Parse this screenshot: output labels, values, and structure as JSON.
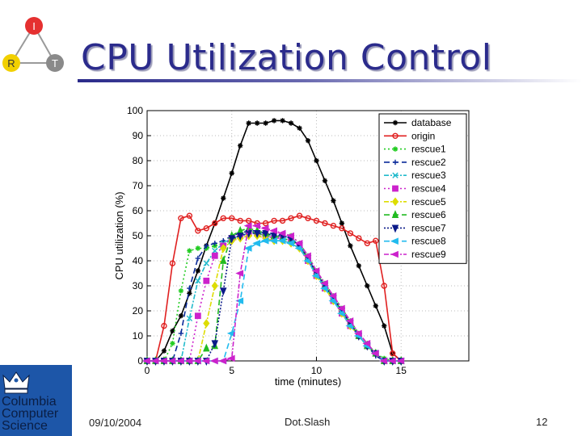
{
  "slide": {
    "title": "CPU Utilization Control",
    "logo_nodes": [
      "I",
      "R",
      "T"
    ],
    "footer": {
      "date": "09/10/2004",
      "center": "Dot.Slash",
      "page": "12"
    },
    "sidebar_logo": [
      "Columbia",
      "Computer",
      "Science"
    ]
  },
  "chart_data": {
    "type": "line",
    "xlabel": "time (minutes)",
    "ylabel": "CPU utilization (%)",
    "xlim": [
      0,
      19
    ],
    "ylim": [
      0,
      100
    ],
    "xticks": [
      0,
      5,
      10,
      15
    ],
    "yticks": [
      0,
      10,
      20,
      30,
      40,
      50,
      60,
      70,
      80,
      90,
      100
    ],
    "grid": true,
    "legend": "top-right",
    "series": [
      {
        "name": "database",
        "color": "#000000",
        "dash": "",
        "marker": "star",
        "x": [
          0,
          0.5,
          1,
          1.5,
          2,
          2.5,
          3,
          3.5,
          4,
          4.5,
          5,
          5.5,
          6,
          6.5,
          7,
          7.5,
          8,
          8.5,
          9,
          9.5,
          10,
          10.5,
          11,
          11.5,
          12,
          12.5,
          13,
          13.5,
          14,
          14.5,
          15
        ],
        "y": [
          0,
          0,
          4,
          12,
          18,
          27,
          36,
          46,
          55,
          65,
          75,
          86,
          95,
          95,
          95,
          96,
          96,
          95,
          93,
          88,
          80,
          72,
          64,
          55,
          46,
          38,
          30,
          22,
          14,
          3,
          0
        ]
      },
      {
        "name": "origin",
        "color": "#e02020",
        "dash": "",
        "marker": "circle",
        "x": [
          0,
          0.5,
          1,
          1.5,
          2,
          2.5,
          3,
          3.5,
          4,
          4.5,
          5,
          5.5,
          6,
          6.5,
          7,
          7.5,
          8,
          8.5,
          9,
          9.5,
          10,
          10.5,
          11,
          11.5,
          12,
          12.5,
          13,
          13.5,
          14,
          14.5,
          15
        ],
        "y": [
          0,
          0,
          14,
          39,
          57,
          58,
          52,
          53,
          55,
          57,
          57,
          56,
          56,
          55,
          55,
          56,
          56,
          57,
          58,
          57,
          56,
          55,
          54,
          53,
          51,
          49,
          47,
          48,
          30,
          3,
          0
        ]
      },
      {
        "name": "rescue1",
        "color": "#22cc22",
        "dash": "2,3",
        "marker": "star",
        "x": [
          0,
          0.5,
          1,
          1.5,
          2,
          2.5,
          3,
          3.5,
          4,
          4.5,
          5,
          5.5,
          6,
          6.5,
          7,
          7.5,
          8,
          8.5,
          9,
          9.5,
          10,
          10.5,
          11,
          11.5,
          12,
          12.5,
          13,
          13.5,
          14,
          14.5,
          15
        ],
        "y": [
          0,
          0,
          0,
          7,
          28,
          44,
          45,
          45,
          46,
          47,
          48,
          50,
          52,
          51,
          50,
          50,
          50,
          50,
          47,
          42,
          36,
          31,
          26,
          21,
          16,
          11,
          7,
          3,
          1,
          0,
          0
        ]
      },
      {
        "name": "rescue2",
        "color": "#0a2a99",
        "dash": "7,4",
        "marker": "plus",
        "x": [
          0,
          0.5,
          1,
          1.5,
          2,
          2.5,
          3,
          3.5,
          4,
          4.5,
          5,
          5.5,
          6,
          6.5,
          7,
          7.5,
          8,
          8.5,
          9,
          9.5,
          10,
          10.5,
          11,
          11.5,
          12,
          12.5,
          13,
          13.5,
          14,
          14.5,
          15
        ],
        "y": [
          0,
          0,
          0,
          0,
          11,
          29,
          41,
          46,
          47,
          48,
          50,
          51,
          52,
          52,
          51,
          51,
          50,
          49,
          46,
          41,
          35,
          30,
          25,
          20,
          15,
          10,
          6,
          2,
          0,
          0,
          0
        ]
      },
      {
        "name": "rescue3",
        "color": "#22bbcc",
        "dash": "6,2,2,2",
        "marker": "x",
        "x": [
          0,
          0.5,
          1,
          1.5,
          2,
          2.5,
          3,
          3.5,
          4,
          4.5,
          5,
          5.5,
          6,
          6.5,
          7,
          7.5,
          8,
          8.5,
          9,
          9.5,
          10,
          10.5,
          11,
          11.5,
          12,
          12.5,
          13,
          13.5,
          14,
          14.5,
          15
        ],
        "y": [
          0,
          0,
          0,
          0,
          0,
          17,
          32,
          39,
          44,
          47,
          49,
          50,
          51,
          51,
          51,
          50,
          50,
          49,
          46,
          41,
          35,
          30,
          25,
          20,
          15,
          10,
          6,
          3,
          0,
          0,
          0
        ]
      },
      {
        "name": "rescue4",
        "color": "#cc22cc",
        "dash": "2,3",
        "marker": "square",
        "x": [
          0,
          0.5,
          1,
          1.5,
          2,
          2.5,
          3,
          3.5,
          4,
          4.5,
          5,
          5.5,
          6,
          6.5,
          7,
          7.5,
          8,
          8.5,
          9,
          9.5,
          10,
          10.5,
          11,
          11.5,
          12,
          12.5,
          13,
          13.5,
          14,
          14.5,
          15
        ],
        "y": [
          0,
          0,
          0,
          0,
          0,
          0,
          18,
          32,
          42,
          46,
          49,
          50,
          51,
          51,
          50,
          49,
          49,
          48,
          46,
          40,
          34,
          29,
          24,
          19,
          14,
          10,
          6,
          3,
          0,
          0,
          0
        ]
      },
      {
        "name": "rescue5",
        "color": "#dddd00",
        "dash": "6,2,2,2",
        "marker": "diamond",
        "x": [
          0,
          0.5,
          1,
          1.5,
          2,
          2.5,
          3,
          3.5,
          4,
          4.5,
          5,
          5.5,
          6,
          6.5,
          7,
          7.5,
          8,
          8.5,
          9,
          9.5,
          10,
          10.5,
          11,
          11.5,
          12,
          12.5,
          13,
          13.5,
          14,
          14.5,
          15
        ],
        "y": [
          0,
          0,
          0,
          0,
          0,
          0,
          0,
          15,
          30,
          45,
          48,
          49,
          50,
          50,
          49,
          48,
          48,
          47,
          45,
          40,
          34,
          29,
          24,
          19,
          14,
          10,
          6,
          3,
          0,
          0,
          0
        ]
      },
      {
        "name": "rescue6",
        "color": "#22bb22",
        "dash": "7,4",
        "marker": "triangle-up",
        "x": [
          0,
          0.5,
          1,
          1.5,
          2,
          2.5,
          3,
          3.5,
          4,
          4.5,
          5,
          5.5,
          6,
          6.5,
          7,
          7.5,
          8,
          8.5,
          9,
          9.5,
          10,
          10.5,
          11,
          11.5,
          12,
          12.5,
          13,
          13.5,
          14,
          14.5,
          15
        ],
        "y": [
          0,
          0,
          0,
          0,
          0,
          0,
          0,
          5,
          6,
          40,
          50,
          52,
          53,
          52,
          51,
          50,
          49,
          48,
          46,
          41,
          35,
          30,
          25,
          20,
          15,
          10,
          6,
          3,
          0,
          0,
          0
        ]
      },
      {
        "name": "rescue7",
        "color": "#0a1a88",
        "dash": "2,2",
        "marker": "triangle-down",
        "x": [
          0,
          0.5,
          1,
          1.5,
          2,
          2.5,
          3,
          3.5,
          4,
          4.5,
          5,
          5.5,
          6,
          6.5,
          7,
          7.5,
          8,
          8.5,
          9,
          9.5,
          10,
          10.5,
          11,
          11.5,
          12,
          12.5,
          13,
          13.5,
          14,
          14.5,
          15
        ],
        "y": [
          0,
          0,
          0,
          0,
          0,
          0,
          0,
          0,
          7,
          28,
          49,
          50,
          51,
          51,
          51,
          50,
          50,
          49,
          46,
          41,
          35,
          30,
          25,
          20,
          15,
          10,
          6,
          3,
          0,
          0,
          0
        ]
      },
      {
        "name": "rescue8",
        "color": "#22bbee",
        "dash": "7,4",
        "marker": "triangle-left",
        "x": [
          0,
          0.5,
          1,
          1.5,
          2,
          2.5,
          3,
          3.5,
          4,
          4.5,
          5,
          5.5,
          6,
          6.5,
          7,
          7.5,
          8,
          8.5,
          9,
          9.5,
          10,
          10.5,
          11,
          11.5,
          12,
          12.5,
          13,
          13.5,
          14,
          14.5,
          15
        ],
        "y": [
          0,
          0,
          0,
          0,
          0,
          0,
          0,
          0,
          0,
          0,
          11,
          24,
          45,
          47,
          48,
          48,
          48,
          47,
          45,
          40,
          34,
          29,
          24,
          19,
          14,
          10,
          6,
          3,
          0,
          0,
          0
        ]
      },
      {
        "name": "rescue9",
        "color": "#cc22cc",
        "dash": "6,2,2,2",
        "marker": "triangle-left",
        "x": [
          0,
          0.5,
          1,
          1.5,
          2,
          2.5,
          3,
          3.5,
          4,
          4.5,
          5,
          5.5,
          6,
          6.5,
          7,
          7.5,
          8,
          8.5,
          9,
          9.5,
          10,
          10.5,
          11,
          11.5,
          12,
          12.5,
          13,
          13.5,
          14,
          14.5,
          15
        ],
        "y": [
          0,
          0,
          0,
          0,
          0,
          0,
          0,
          0,
          0,
          0,
          1,
          35,
          54,
          54,
          53,
          52,
          51,
          50,
          47,
          42,
          36,
          31,
          26,
          21,
          16,
          11,
          7,
          3,
          0,
          0,
          0
        ]
      }
    ]
  }
}
